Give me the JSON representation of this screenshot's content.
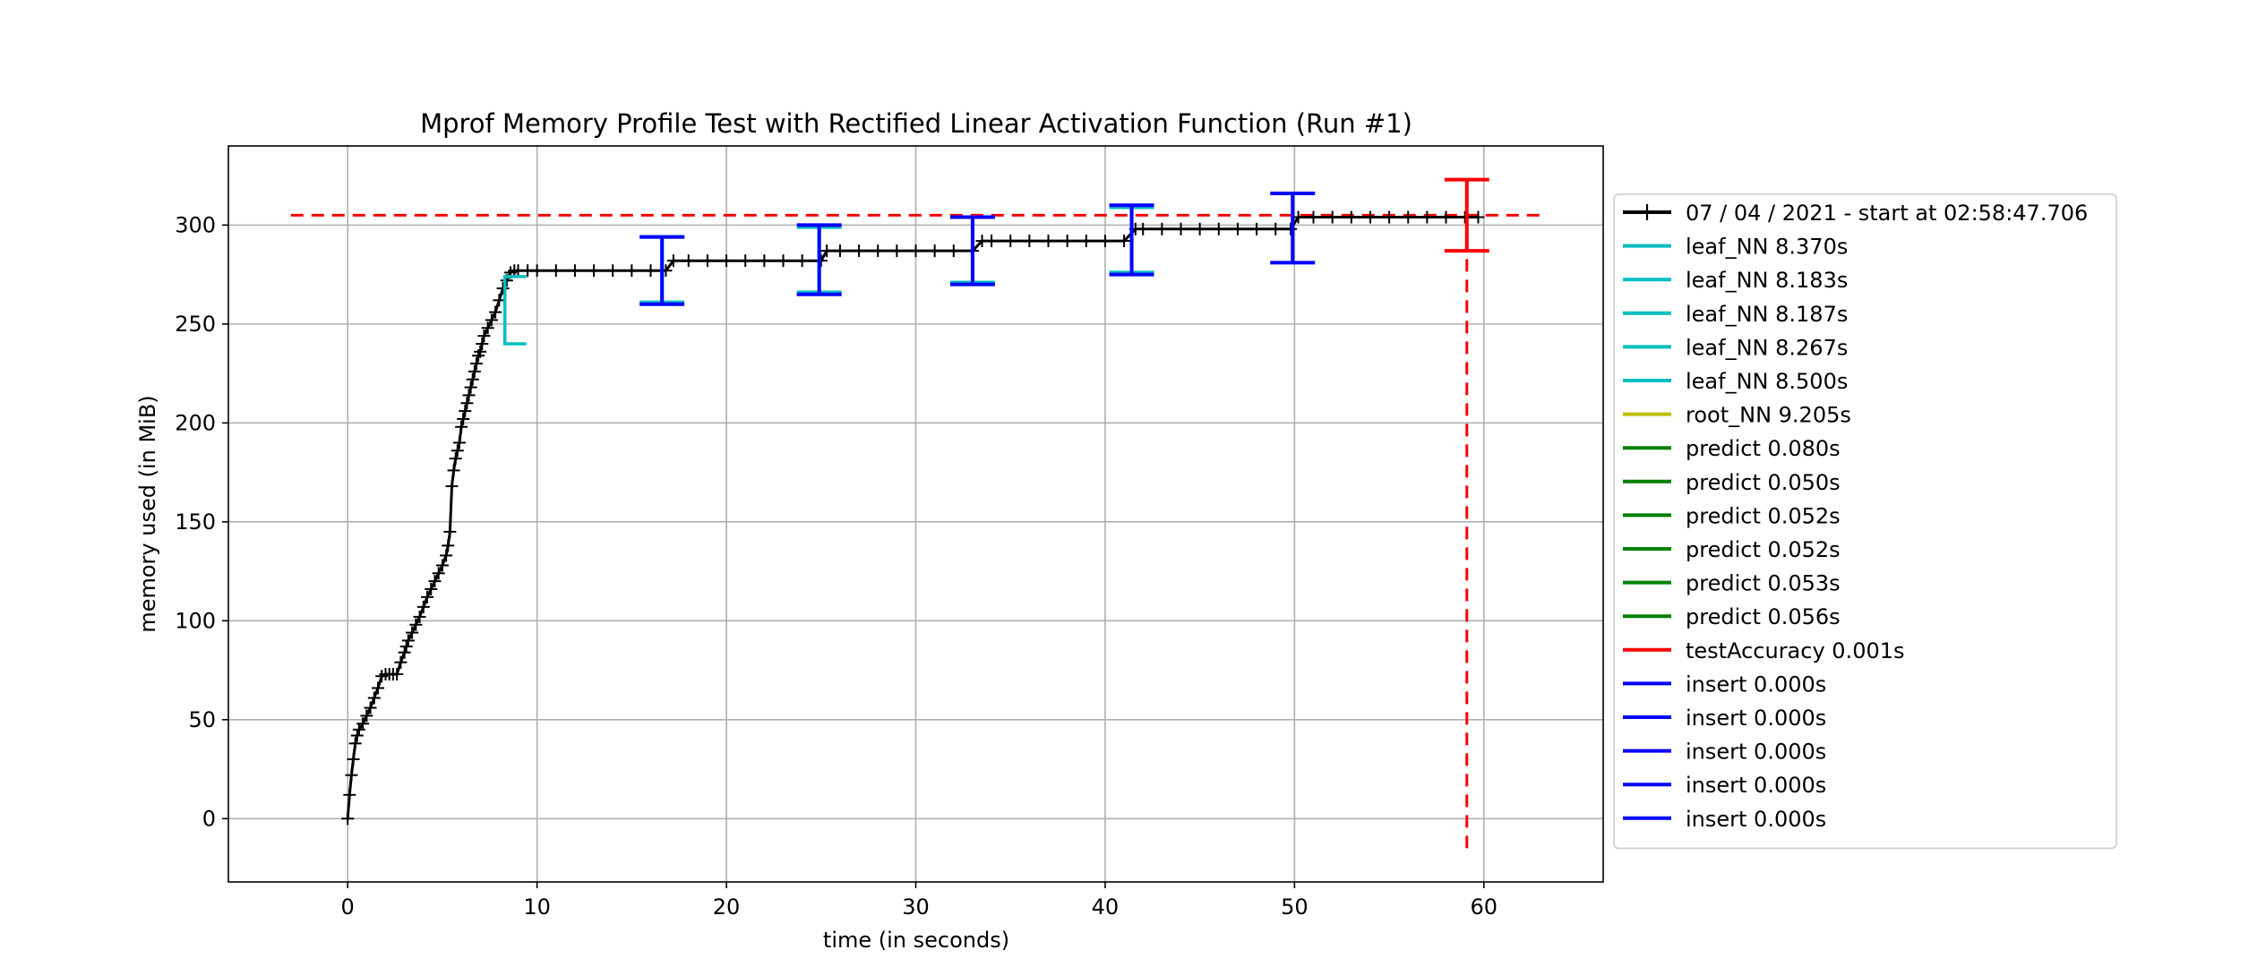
{
  "chart_data": {
    "type": "line",
    "title": "Mprof Memory Profile Test with Rectified Linear Activation Function (Run #1)",
    "xlabel": "time (in seconds)",
    "ylabel": "memory used (in MiB)",
    "xlim": [
      -6.3,
      66.3
    ],
    "ylim": [
      -32,
      340
    ],
    "xticks": [
      0,
      10,
      20,
      30,
      40,
      50,
      60
    ],
    "yticks": [
      0,
      50,
      100,
      150,
      200,
      250,
      300
    ],
    "grid": true,
    "legend_placement": "right, outside plot",
    "series": [
      {
        "name": "07 / 04 / 2021 - start at 02:58:47.706",
        "color": "#000000",
        "marker": "+",
        "x": [
          0.0,
          0.1,
          0.2,
          0.3,
          0.4,
          0.5,
          0.6,
          0.8,
          1.0,
          1.2,
          1.4,
          1.6,
          1.8,
          2.0,
          2.2,
          2.4,
          2.6,
          2.8,
          3.0,
          3.1,
          3.2,
          3.4,
          3.6,
          3.8,
          4.0,
          4.2,
          4.4,
          4.6,
          4.8,
          5.0,
          5.2,
          5.3,
          5.4,
          5.5,
          5.6,
          5.7,
          5.8,
          5.9,
          6.0,
          6.1,
          6.2,
          6.3,
          6.4,
          6.5,
          6.6,
          6.7,
          6.8,
          6.9,
          7.0,
          7.1,
          7.2,
          7.4,
          7.6,
          7.8,
          8.0,
          8.2,
          8.4,
          8.6,
          8.8,
          9.0,
          9.5,
          10.0,
          11.0,
          12.0,
          13.0,
          14.0,
          15.0,
          16.0,
          16.8,
          17.2,
          18.0,
          19.0,
          20.0,
          21.0,
          22.0,
          23.0,
          24.0,
          25.0,
          25.3,
          26.0,
          27.0,
          28.0,
          29.0,
          30.0,
          31.0,
          32.0,
          33.0,
          33.5,
          34.0,
          35.0,
          36.0,
          37.0,
          38.0,
          39.0,
          40.0,
          41.0,
          41.6,
          42.0,
          43.0,
          44.0,
          45.0,
          46.0,
          47.0,
          48.0,
          49.0,
          49.8,
          50.2,
          51.0,
          52.0,
          53.0,
          54.0,
          55.0,
          56.0,
          57.0,
          58.0,
          59.0,
          59.7
        ],
        "y": [
          0,
          12,
          22,
          30,
          38,
          42,
          45,
          48,
          52,
          56,
          61,
          66,
          72,
          73,
          73,
          73,
          73,
          79,
          84,
          87,
          90,
          94,
          98,
          102,
          107,
          112,
          116,
          120,
          124,
          128,
          133,
          138,
          145,
          168,
          176,
          182,
          186,
          190,
          198,
          202,
          206,
          210,
          214,
          218,
          222,
          226,
          230,
          234,
          236,
          240,
          244,
          248,
          252,
          256,
          262,
          268,
          272,
          276,
          277,
          277,
          277,
          277,
          277,
          277,
          277,
          277,
          277,
          277,
          277,
          282,
          282,
          282,
          282,
          282,
          282,
          282,
          282,
          282,
          287,
          287,
          287,
          287,
          287,
          287,
          287,
          287,
          287,
          292,
          292,
          292,
          292,
          292,
          292,
          292,
          292,
          292,
          298,
          298,
          298,
          298,
          298,
          298,
          298,
          298,
          298,
          298,
          304,
          304,
          304,
          304,
          304,
          304,
          304,
          304,
          304,
          304,
          304
        ]
      }
    ],
    "function_brackets": [
      {
        "name": "leaf_NN 8.370s",
        "color": "#00bfbf",
        "x": 8.3,
        "ymin": 240,
        "ymax": 274
      },
      {
        "name": "leaf_NN 8.183s",
        "color": "#00bfbf",
        "x": 16.6,
        "ymin": 261,
        "ymax": 294
      },
      {
        "name": "leaf_NN 8.187s",
        "color": "#00bfbf",
        "x": 24.9,
        "ymin": 266,
        "ymax": 299
      },
      {
        "name": "leaf_NN 8.267s",
        "color": "#00bfbf",
        "x": 33.0,
        "ymin": 271,
        "ymax": 304
      },
      {
        "name": "leaf_NN 8.500s",
        "color": "#00bfbf",
        "x": 41.4,
        "ymin": 276,
        "ymax": 309
      },
      {
        "name": "root_NN 9.205s",
        "color": "#bfbf00",
        "x": 0,
        "ymin": 0,
        "ymax": 0
      },
      {
        "name": "predict 0.080s",
        "color": "#008000",
        "x": 16.6,
        "ymin": 277,
        "ymax": 278
      },
      {
        "name": "predict 0.050s",
        "color": "#008000",
        "x": 24.9,
        "ymin": 282,
        "ymax": 283
      },
      {
        "name": "predict 0.052s",
        "color": "#008000",
        "x": 33.0,
        "ymin": 287,
        "ymax": 288
      },
      {
        "name": "predict 0.052s",
        "color": "#008000",
        "x": 41.4,
        "ymin": 292,
        "ymax": 293
      },
      {
        "name": "predict 0.053s",
        "color": "#008000",
        "x": 49.9,
        "ymin": 298,
        "ymax": 299
      },
      {
        "name": "predict 0.056s",
        "color": "#008000",
        "x": 59.1,
        "ymin": 304,
        "ymax": 305
      },
      {
        "name": "testAccuracy 0.001s",
        "color": "#ff0000",
        "x": 59.1,
        "ymin": 287,
        "ymax": 323
      },
      {
        "name": "insert 0.000s",
        "color": "#0000ff",
        "x": 16.6,
        "ymin": 260,
        "ymax": 294
      },
      {
        "name": "insert 0.000s",
        "color": "#0000ff",
        "x": 24.9,
        "ymin": 265,
        "ymax": 300
      },
      {
        "name": "insert 0.000s",
        "color": "#0000ff",
        "x": 33.0,
        "ymin": 270,
        "ymax": 304
      },
      {
        "name": "insert 0.000s",
        "color": "#0000ff",
        "x": 41.4,
        "ymin": 275,
        "ymax": 310
      },
      {
        "name": "insert 0.000s",
        "color": "#0000ff",
        "x": 49.9,
        "ymin": 281,
        "ymax": 316
      }
    ],
    "peak_lines": {
      "color": "#ff0000",
      "style": "dashed",
      "horizontal_y": 305,
      "horizontal_x_range": [
        -3,
        63
      ],
      "vertical_x": 59.1,
      "vertical_y_range": [
        -15,
        305
      ]
    }
  }
}
